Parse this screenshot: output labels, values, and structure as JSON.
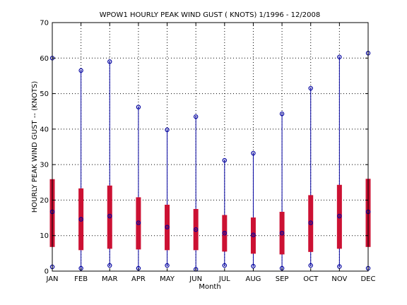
{
  "chart_data": {
    "type": "box",
    "title": "WPOW1  HOURLY PEAK WIND GUST ( KNOTS) 1/1996 - 12/2008",
    "xlabel": "Month",
    "ylabel": "HOURLY PEAK WIND GUST -- (KNOTS)",
    "ylim": [
      0,
      70
    ],
    "yticks": [
      0,
      10,
      20,
      30,
      40,
      50,
      60,
      70
    ],
    "grid": true,
    "categories": [
      "JAN",
      "FEB",
      "MAR",
      "APR",
      "MAY",
      "JUN",
      "JUL",
      "AUG",
      "SEP",
      "OCT",
      "NOV",
      "DEC"
    ],
    "max": [
      60.0,
      56.5,
      59.0,
      46.2,
      39.8,
      43.5,
      31.2,
      33.2,
      44.3,
      51.5,
      60.3,
      61.4
    ],
    "q3": [
      25.9,
      23.3,
      24.1,
      20.8,
      18.7,
      17.5,
      15.8,
      15.1,
      16.7,
      21.4,
      24.3,
      26.0
    ],
    "median": [
      16.7,
      14.6,
      15.5,
      13.6,
      12.4,
      11.7,
      10.7,
      10.2,
      10.7,
      13.6,
      15.5,
      16.7
    ],
    "q1": [
      6.8,
      5.9,
      6.3,
      6.1,
      5.9,
      5.9,
      5.5,
      4.9,
      4.7,
      5.4,
      6.3,
      6.8
    ],
    "min": [
      1.2,
      0.8,
      1.6,
      0.8,
      1.6,
      0.5,
      1.6,
      1.4,
      0.8,
      1.6,
      1.3,
      0.8
    ],
    "colors": {
      "box": "#cc1133",
      "whisker": "#0000a0",
      "marker": "#0000a0",
      "grid": "#000000"
    }
  }
}
